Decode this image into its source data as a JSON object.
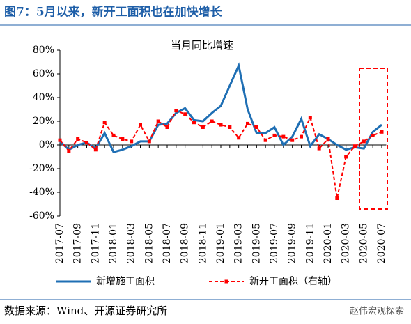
{
  "header": {
    "title": "图7：5月以来，新开工面积也在加快增长"
  },
  "chart_data": {
    "type": "line",
    "title": "当月同比增速",
    "categories": [
      "2017-07",
      null,
      "2017-09",
      null,
      "2017-11",
      null,
      "2018-01",
      null,
      "2018-03",
      null,
      "2018-05",
      null,
      "2018-07",
      null,
      "2018-09",
      null,
      "2018-11",
      null,
      "2019-01",
      null,
      "2019-03",
      null,
      "2019-05",
      null,
      "2019-07",
      null,
      "2019-09",
      null,
      "2019-11",
      null,
      "2020-01",
      null,
      "2020-03",
      null,
      "2020-05",
      null,
      "2020-07"
    ],
    "series": [
      {
        "name": "新增施工面积",
        "color": "#1f6fb4",
        "values": [
          3,
          -4,
          0,
          2,
          -3,
          10,
          -6,
          -4,
          -1,
          3,
          3,
          17,
          18,
          27,
          31,
          21,
          20,
          27,
          33,
          50,
          67,
          30,
          10,
          10,
          15,
          0,
          7,
          22,
          -1,
          9,
          5,
          0,
          -4,
          -2,
          -3,
          11,
          17
        ]
      },
      {
        "name": "新开工面积（右轴）",
        "color": "#ff0000",
        "values": [
          4,
          -5,
          5,
          2,
          -4,
          19,
          8,
          5,
          3,
          17,
          3,
          20,
          15,
          29,
          26,
          19,
          15,
          20,
          17,
          15,
          6,
          18,
          15,
          4,
          8,
          7,
          4,
          7,
          23,
          -3,
          5,
          -45,
          -10,
          -1,
          3,
          8,
          11
        ]
      }
    ],
    "ylim": [
      -60,
      80
    ],
    "yticks": [
      {
        "value": -60,
        "label": "-60%"
      },
      {
        "value": -40,
        "label": "-40%"
      },
      {
        "value": -20,
        "label": "-20%"
      },
      {
        "value": 0,
        "label": "0%"
      },
      {
        "value": 20,
        "label": "20%"
      },
      {
        "value": 40,
        "label": "40%"
      },
      {
        "value": 60,
        "label": "60%"
      },
      {
        "value": 80,
        "label": "80%"
      }
    ],
    "legend": "bottom"
  },
  "footer": {
    "source": "数据来源：Wind、开源证券研究所",
    "watermark": "赵伟宏观探索"
  }
}
